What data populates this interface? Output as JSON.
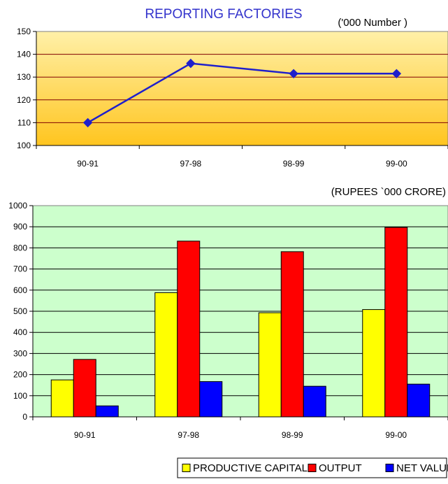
{
  "chart_data": [
    {
      "type": "line",
      "title": "REPORTING FACTORIES",
      "unit_label": "('000  Number )",
      "categories": [
        "90-91",
        "97-98",
        "98-99",
        "99-00"
      ],
      "series": [
        {
          "values": [
            110,
            136,
            131.5,
            131.5
          ]
        }
      ],
      "ylim": [
        100,
        150
      ],
      "yticks": [
        100,
        110,
        120,
        130,
        140,
        150
      ],
      "grid": true,
      "colors": {
        "line": "#1f1fcc",
        "plot_top": "#fff0a8",
        "plot_bottom": "#ffc51f",
        "grid": "#800000"
      }
    },
    {
      "type": "bar",
      "unit_label": "(RUPEES `000 CRORE)",
      "categories": [
        "90-91",
        "97-98",
        "98-99",
        "99-00"
      ],
      "series": [
        {
          "name": "PRODUCTIVE CAPITAL",
          "values": [
            175,
            588,
            493,
            508
          ]
        },
        {
          "name": "OUTPUT",
          "values": [
            272,
            832,
            782,
            897
          ]
        },
        {
          "name": "NET VALUE ADDED",
          "values": [
            52,
            167,
            145,
            155
          ]
        }
      ],
      "ylim": [
        0,
        1000
      ],
      "yticks": [
        0,
        100,
        200,
        300,
        400,
        500,
        600,
        700,
        800,
        900,
        1000
      ],
      "grid": true,
      "legend_placement": "bottom",
      "colors": {
        "series": [
          "#ffff00",
          "#ff0000",
          "#0000ff"
        ],
        "plot_bg": "#ccffcc",
        "grid": "#000000"
      }
    }
  ]
}
